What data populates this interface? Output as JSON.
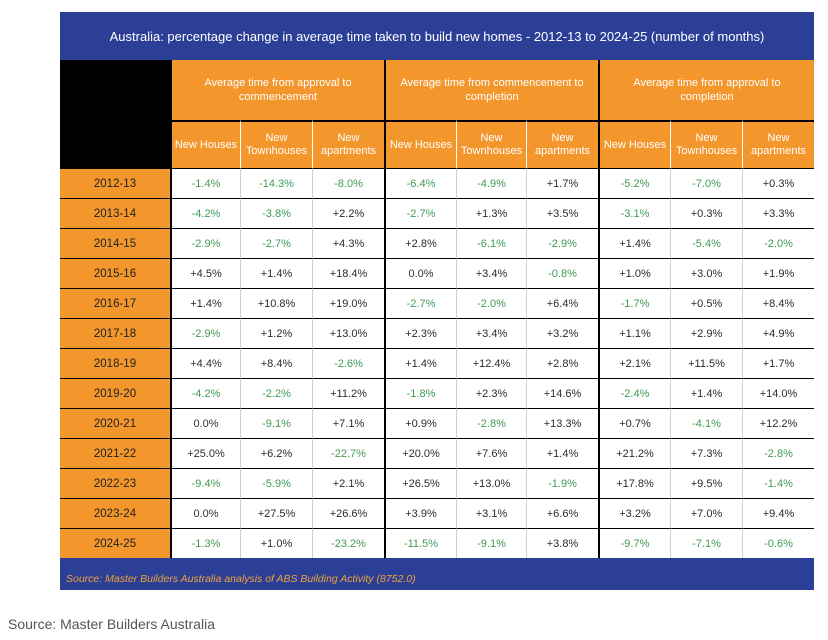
{
  "chart_data": {
    "type": "table",
    "title": "Australia: percentage change in average time taken to build new homes - 2012-13 to 2024-25 (number of months)",
    "groups": [
      "Average time from approval to commencement",
      "Average time from commencement to completion",
      "Average time from approval to completion"
    ],
    "subcolumns": [
      "New Houses",
      "New Townhouses",
      "New apartments",
      "New Houses",
      "New Townhouses",
      "New apartments",
      "New Houses",
      "New Townhouses",
      "New apartments"
    ],
    "rows": [
      {
        "year": "2012-13",
        "values": [
          "-1.4%",
          "-14.3%",
          "-8.0%",
          "-6.4%",
          "-4.9%",
          "+1.7%",
          "-5.2%",
          "-7.0%",
          "+0.3%"
        ]
      },
      {
        "year": "2013-14",
        "values": [
          "-4.2%",
          "-3.8%",
          "+2.2%",
          "-2.7%",
          "+1.3%",
          "+3.5%",
          "-3.1%",
          "+0.3%",
          "+3.3%"
        ]
      },
      {
        "year": "2014-15",
        "values": [
          "-2.9%",
          "-2.7%",
          "+4.3%",
          "+2.8%",
          "-6.1%",
          "-2.9%",
          "+1.4%",
          "-5.4%",
          "-2.0%"
        ]
      },
      {
        "year": "2015-16",
        "values": [
          "+4.5%",
          "+1.4%",
          "+18.4%",
          "0.0%",
          "+3.4%",
          "-0.8%",
          "+1.0%",
          "+3.0%",
          "+1.9%"
        ]
      },
      {
        "year": "2016-17",
        "values": [
          "+1.4%",
          "+10.8%",
          "+19.0%",
          "-2.7%",
          "-2.0%",
          "+6.4%",
          "-1.7%",
          "+0.5%",
          "+8.4%"
        ]
      },
      {
        "year": "2017-18",
        "values": [
          "-2.9%",
          "+1.2%",
          "+13.0%",
          "+2.3%",
          "+3.4%",
          "+3.2%",
          "+1.1%",
          "+2.9%",
          "+4.9%"
        ]
      },
      {
        "year": "2018-19",
        "values": [
          "+4.4%",
          "+8.4%",
          "-2.6%",
          "+1.4%",
          "+12.4%",
          "+2.8%",
          "+2.1%",
          "+11.5%",
          "+1.7%"
        ]
      },
      {
        "year": "2019-20",
        "values": [
          "-4.2%",
          "-2.2%",
          "+11.2%",
          "-1.8%",
          "+2.3%",
          "+14.6%",
          "-2.4%",
          "+1.4%",
          "+14.0%"
        ]
      },
      {
        "year": "2020-21",
        "values": [
          "0.0%",
          "-9.1%",
          "+7.1%",
          "+0.9%",
          "-2.8%",
          "+13.3%",
          "+0.7%",
          "-4.1%",
          "+12.2%"
        ]
      },
      {
        "year": "2021-22",
        "values": [
          "+25.0%",
          "+6.2%",
          "-22.7%",
          "+20.0%",
          "+7.6%",
          "+1.4%",
          "+21.2%",
          "+7.3%",
          "-2.8%"
        ]
      },
      {
        "year": "2022-23",
        "values": [
          "-9.4%",
          "-5.9%",
          "+2.1%",
          "+26.5%",
          "+13.0%",
          "-1.9%",
          "+17.8%",
          "+9.5%",
          "-1.4%"
        ]
      },
      {
        "year": "2023-24",
        "values": [
          "0.0%",
          "+27.5%",
          "+26.6%",
          "+3.9%",
          "+3.1%",
          "+6.6%",
          "+3.2%",
          "+7.0%",
          "+9.4%"
        ]
      },
      {
        "year": "2024-25",
        "values": [
          "-1.3%",
          "+1.0%",
          "-23.2%",
          "-11.5%",
          "-9.1%",
          "+3.8%",
          "-9.7%",
          "-7.1%",
          "-0.6%"
        ]
      }
    ],
    "source_note": "Source: Master Builders Australia analysis of ABS Building Activity (8752.0)"
  },
  "caption": "Source: Master Builders Australia",
  "colors": {
    "header_blue": "#2b3f96",
    "orange": "#f3962c",
    "negative_green": "#3f9b55",
    "positive_dark": "#2b2b2b"
  }
}
